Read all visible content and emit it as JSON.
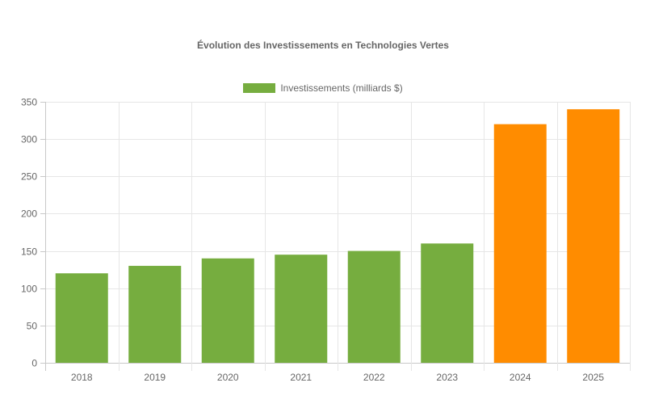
{
  "chart_data": {
    "type": "bar",
    "title": "Évolution des Investissements en Technologies Vertes",
    "xlabel": "",
    "ylabel": "",
    "categories": [
      "2018",
      "2019",
      "2020",
      "2021",
      "2022",
      "2023",
      "2024",
      "2025"
    ],
    "series": [
      {
        "name": "Investissements (milliards $)",
        "values": [
          120,
          130,
          140,
          145,
          150,
          160,
          320,
          340
        ],
        "colors": [
          "#76ad3f",
          "#76ad3f",
          "#76ad3f",
          "#76ad3f",
          "#76ad3f",
          "#76ad3f",
          "#ff8c00",
          "#ff8c00"
        ]
      }
    ],
    "ylim": [
      0,
      350
    ],
    "yticks": [
      0,
      50,
      100,
      150,
      200,
      250,
      300,
      350
    ],
    "grid": true,
    "legend_position": "top"
  },
  "legend": {
    "label": "Investissements (milliards $)",
    "color": "#76ad3f"
  }
}
